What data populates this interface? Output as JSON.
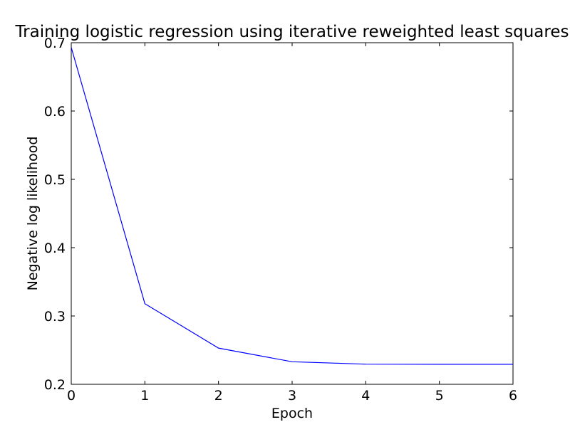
{
  "chart_data": {
    "type": "line",
    "title": "Training logistic regression using iterative reweighted least squares",
    "xlabel": "Epoch",
    "ylabel": "Negative log likelihood",
    "xlim": [
      0,
      6
    ],
    "ylim": [
      0.2,
      0.7
    ],
    "xticks": [
      "0",
      "1",
      "2",
      "3",
      "4",
      "5",
      "6"
    ],
    "yticks": [
      "0.2",
      "0.3",
      "0.4",
      "0.5",
      "0.6",
      "0.7"
    ],
    "grid": false,
    "series": [
      {
        "color": "#0000ff",
        "x": [
          0,
          1,
          2,
          3,
          4,
          5,
          6
        ],
        "y": [
          0.693,
          0.318,
          0.253,
          0.233,
          0.2295,
          0.2293,
          0.2293
        ]
      }
    ]
  }
}
